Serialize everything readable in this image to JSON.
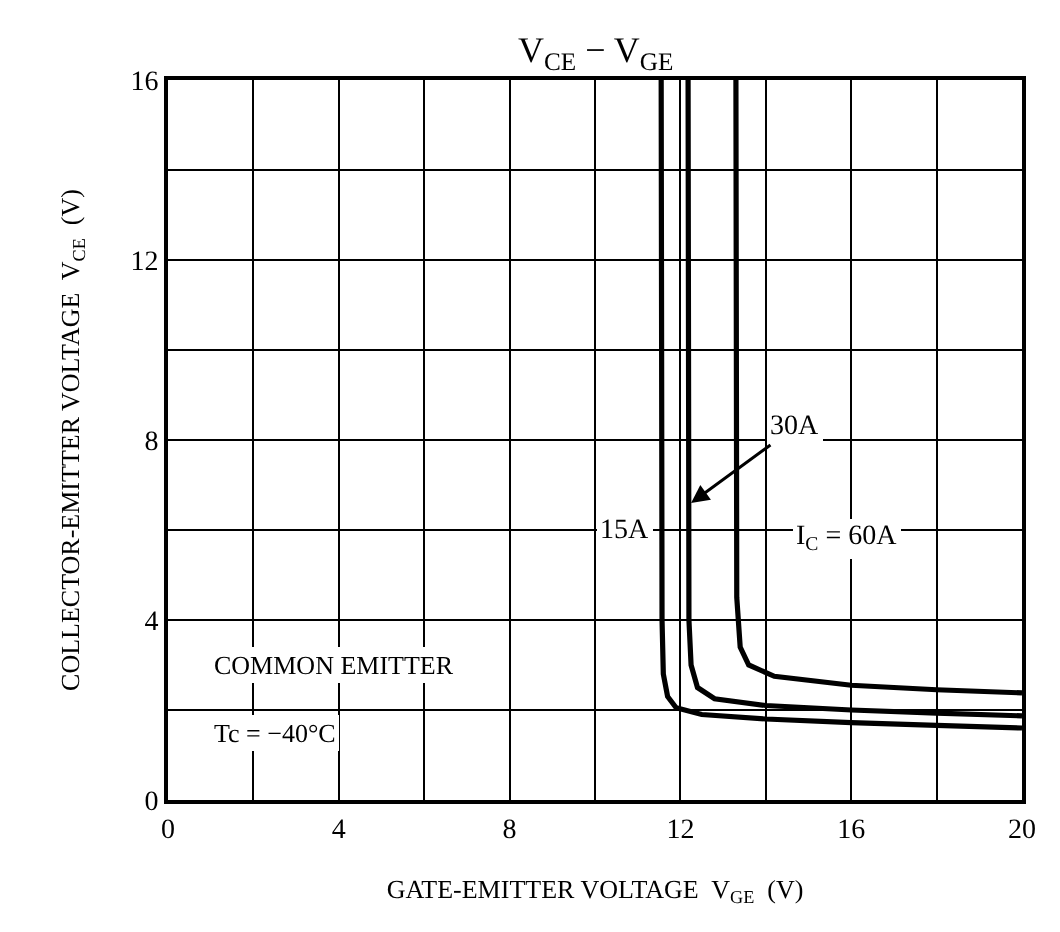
{
  "chart_data": {
    "type": "line",
    "title": "V$_{CE}$ − V$_{GE}$",
    "xlabel": "GATE-EMITTER VOLTAGE  V$_{GE}$  (V)",
    "ylabel": "COLLECTOR-EMITTER VOLTAGE  V$_{CE}$  (V)",
    "xlim": [
      0,
      20
    ],
    "ylim": [
      0,
      16
    ],
    "xticks": [
      0,
      {
        "value": 2,
        "label": null
      },
      4,
      {
        "value": 6,
        "label": null
      },
      8,
      {
        "value": 10,
        "label": null
      },
      12,
      {
        "value": 14,
        "label": null
      },
      16,
      {
        "value": 18,
        "label": null
      },
      20
    ],
    "yticks": [
      0,
      {
        "value": 2,
        "label": null
      },
      4,
      {
        "value": 6,
        "label": null
      },
      8,
      {
        "value": 10,
        "label": null
      },
      12,
      {
        "value": 14,
        "label": null
      },
      16
    ],
    "grid": true,
    "marker": "none",
    "line_style": "solid",
    "series": [
      {
        "color": "#000000",
        "x": [
          11.55,
          11.57,
          11.6,
          11.7,
          11.9,
          12.5,
          14,
          16,
          18,
          20
        ],
        "values": [
          16,
          4,
          2.8,
          2.3,
          2.05,
          1.9,
          1.8,
          1.72,
          1.66,
          1.6
        ]
      },
      {
        "color": "#000000",
        "x": [
          12.18,
          12.2,
          12.25,
          12.4,
          12.8,
          14,
          16,
          18,
          20
        ],
        "values": [
          16,
          4,
          3,
          2.5,
          2.25,
          2.1,
          2.0,
          1.93,
          1.87
        ]
      },
      {
        "color": "#000000",
        "x": [
          13.3,
          13.32,
          13.4,
          13.6,
          14.2,
          16,
          18,
          20
        ],
        "values": [
          16,
          4.5,
          3.4,
          3.0,
          2.75,
          2.55,
          2.45,
          2.38
        ]
      }
    ],
    "annotations": [
      {
        "text": "15A",
        "x": 10.7,
        "y": 6
      },
      {
        "text": "30A",
        "x": 12.25,
        "y": 6.6
      },
      "I$_{C}$ = 60A",
      "COMMON EMITTER",
      "Tc = −40°C"
    ]
  }
}
